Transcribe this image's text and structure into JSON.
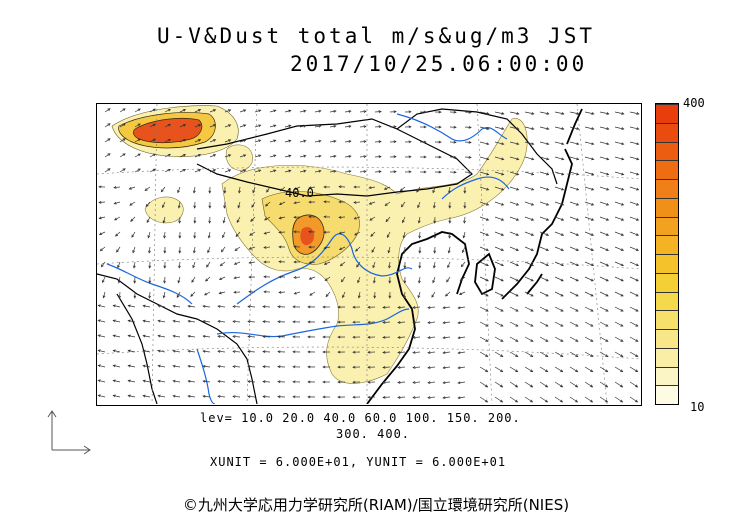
{
  "title": {
    "line1": "U-V&Dust total m/s&ug/m3 JST",
    "line2": "2017/10/25.06:00:00"
  },
  "colorbar": {
    "max_label": "400",
    "min_label": "10",
    "colors": [
      "#fdfbe4",
      "#fbf5c6",
      "#faeea6",
      "#f8e688",
      "#f7df6b",
      "#f6d84d",
      "#f5cf36",
      "#f4c22a",
      "#f3b323",
      "#f2a21e",
      "#f19019",
      "#ef7f16",
      "#ee6d13",
      "#ec5c11",
      "#ea4c0f",
      "#e83e0d"
    ]
  },
  "contour_label": "40.0",
  "levels": {
    "line1": "lev= 10.0 20.0 40.0 60.0 100. 150. 200.",
    "line2": "300. 400."
  },
  "units": "XUNIT = 6.000E+01, YUNIT = 6.000E+01",
  "copyright": "©九州大学応用力学研究所(RIAM)/国立環境研究所(NIES)"
}
